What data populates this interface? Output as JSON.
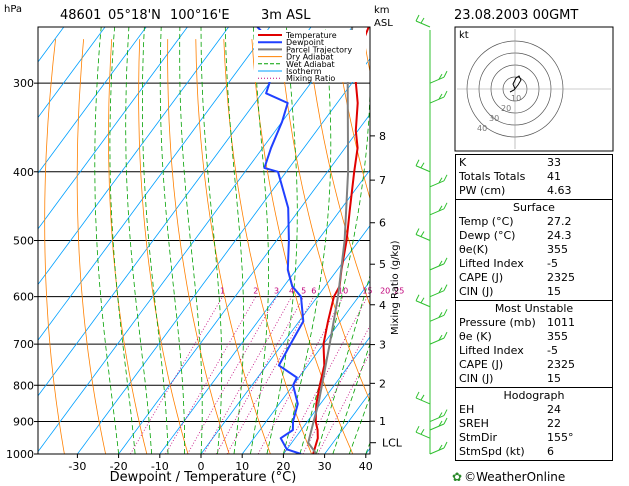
{
  "header": {
    "station": "48601",
    "lat": "05°18'N",
    "lon": "100°16'E",
    "elevation": "3m ASL",
    "datetime": "23.08.2003 00GMT"
  },
  "chart_data": {
    "type": "skew-t log-p",
    "y_unit": "hPa",
    "xlabel": "Dewpoint / Temperature (°C)",
    "x_ticks": [
      -30,
      -20,
      -10,
      0,
      10,
      20,
      30,
      40
    ],
    "x_range": [
      -35,
      40
    ],
    "p_ticks": [
      300,
      400,
      500,
      600,
      700,
      800,
      900,
      1000
    ],
    "p_range": [
      250,
      1000
    ],
    "km_label": "km",
    "asl_label": "ASL",
    "km_ticks": [
      {
        "km": "8",
        "p": 356
      },
      {
        "km": "7",
        "p": 411
      },
      {
        "km": "6",
        "p": 472
      },
      {
        "km": "5",
        "p": 540
      },
      {
        "km": "4",
        "p": 616
      },
      {
        "km": "3",
        "p": 701
      },
      {
        "km": "2",
        "p": 795
      },
      {
        "km": "1",
        "p": 899
      }
    ],
    "lcl_label": "LCL",
    "lcl_p": 964,
    "mixing_ratio_label": "Mixing Ratio (g/kg)",
    "mixing_ratios": [
      "1",
      "2",
      "3",
      "4",
      "5",
      "6",
      "10",
      "15",
      "20",
      "25"
    ],
    "legend": [
      "Temperature",
      "Dewpoint",
      "Parcel Trajectory",
      "Dry Adiabat",
      "Wet Adiabat",
      "Isotherm",
      "Mixing Ratio"
    ],
    "series": [
      {
        "name": "Temperature",
        "points": [
          [
            1000,
            27.2
          ],
          [
            950,
            25.5
          ],
          [
            925,
            24.0
          ],
          [
            900,
            22.0
          ],
          [
            850,
            19.0
          ],
          [
            800,
            16.5
          ],
          [
            750,
            14.0
          ],
          [
            700,
            10.0
          ],
          [
            650,
            7.0
          ],
          [
            600,
            4.0
          ],
          [
            580,
            3.5
          ],
          [
            550,
            1.0
          ],
          [
            500,
            -3.0
          ],
          [
            450,
            -8.0
          ],
          [
            400,
            -13.5
          ],
          [
            370,
            -17.0
          ],
          [
            350,
            -20.5
          ],
          [
            320,
            -25.0
          ],
          [
            300,
            -29.0
          ],
          [
            290,
            -31.0
          ],
          [
            270,
            -33.0
          ],
          [
            260,
            -35.0
          ],
          [
            250,
            -36.0
          ]
        ]
      },
      {
        "name": "Dewpoint",
        "points": [
          [
            1000,
            24.3
          ],
          [
            985,
            20.0
          ],
          [
            950,
            16.5
          ],
          [
            925,
            18.0
          ],
          [
            900,
            16.5
          ],
          [
            850,
            14.5
          ],
          [
            800,
            10.0
          ],
          [
            780,
            9.5
          ],
          [
            750,
            3.0
          ],
          [
            700,
            2.0
          ],
          [
            650,
            1.0
          ],
          [
            600,
            -4.0
          ],
          [
            580,
            -8.0
          ],
          [
            550,
            -12.0
          ],
          [
            500,
            -17.0
          ],
          [
            450,
            -23.0
          ],
          [
            400,
            -32.0
          ],
          [
            395,
            -36.0
          ],
          [
            370,
            -38.0
          ],
          [
            340,
            -40.0
          ],
          [
            320,
            -42.0
          ],
          [
            310,
            -49.0
          ],
          [
            300,
            -50.0
          ],
          [
            290,
            -52.0
          ],
          [
            280,
            -57.0
          ],
          [
            270,
            -59.0
          ],
          [
            260,
            -58.0
          ],
          [
            250,
            -63.0
          ]
        ]
      },
      {
        "name": "Parcel Trajectory",
        "points": [
          [
            1000,
            28.0
          ],
          [
            964,
            24.0
          ],
          [
            900,
            21.5
          ],
          [
            850,
            19.5
          ],
          [
            800,
            17.0
          ],
          [
            700,
            11.5
          ],
          [
            600,
            5.0
          ],
          [
            500,
            -3.5
          ],
          [
            400,
            -15.0
          ],
          [
            300,
            -31.0
          ],
          [
            250,
            -40.0
          ]
        ]
      }
    ]
  },
  "hodograph": {
    "unit": "kt",
    "rings": [
      "10",
      "20",
      "30",
      "40"
    ]
  },
  "indices": {
    "k_label": "K",
    "k": "33",
    "tt_label": "Totals Totals",
    "tt": "41",
    "pw_label": "PW (cm)",
    "pw": "4.63"
  },
  "surface": {
    "title": "Surface",
    "temp_label": "Temp (°C)",
    "temp": "27.2",
    "dewp_label": "Dewp (°C)",
    "dewp": "24.3",
    "theta_label": "θe(K)",
    "theta": "355",
    "li_label": "Lifted Index",
    "li": "-5",
    "cape_label": "CAPE (J)",
    "cape": "2325",
    "cin_label": "CIN (J)",
    "cin": "15"
  },
  "most_unstable": {
    "title": "Most Unstable",
    "pres_label": "Pressure (mb)",
    "pres": "1011",
    "theta_label": "θe (K)",
    "theta": "355",
    "li_label": "Lifted Index",
    "li": "-5",
    "cape_label": "CAPE (J)",
    "cape": "2325",
    "cin_label": "CIN (J)",
    "cin": "15"
  },
  "hodograph_stats": {
    "title": "Hodograph",
    "eh_label": "EH",
    "eh": "24",
    "srh_label": "SREH",
    "srh": "22",
    "dir_label": "StmDir",
    "dir": "155°",
    "spd_label": "StmSpd (kt)",
    "spd": "6"
  },
  "credit": "©WeatherOnline",
  "colors": {
    "temperature": "#e00000",
    "dewpoint": "#2040ff",
    "parcel": "#808080",
    "dry_adiabat": "#ff8000",
    "wet_adiabat": "#00a000",
    "isotherm": "#00a0ff",
    "mixing_ratio": "#c0007a",
    "wind": "#30c030"
  }
}
